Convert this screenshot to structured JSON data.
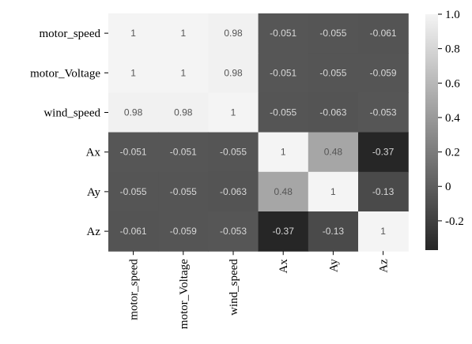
{
  "chart_data": {
    "type": "heatmap",
    "title": "",
    "row_labels": [
      "motor_speed",
      "motor_Voltage",
      "wind_speed",
      "Ax",
      "Ay",
      "Az"
    ],
    "col_labels": [
      "motor_speed",
      "motor_Voltage",
      "wind_speed",
      "Ax",
      "Ay",
      "Az"
    ],
    "values": [
      [
        1,
        1,
        0.98,
        -0.051,
        -0.055,
        -0.061
      ],
      [
        1,
        1,
        0.98,
        -0.051,
        -0.055,
        -0.059
      ],
      [
        0.98,
        0.98,
        1,
        -0.055,
        -0.063,
        -0.053
      ],
      [
        -0.051,
        -0.051,
        -0.055,
        1,
        0.48,
        -0.37
      ],
      [
        -0.055,
        -0.055,
        -0.063,
        0.48,
        1,
        -0.13
      ],
      [
        -0.061,
        -0.059,
        -0.053,
        -0.37,
        -0.13,
        1
      ]
    ],
    "annotations": [
      [
        "1",
        "1",
        "0.98",
        "-0.051",
        "-0.055",
        "-0.061"
      ],
      [
        "1",
        "1",
        "0.98",
        "-0.051",
        "-0.055",
        "-0.059"
      ],
      [
        "0.98",
        "0.98",
        "1",
        "-0.055",
        "-0.063",
        "-0.053"
      ],
      [
        "-0.051",
        "-0.051",
        "-0.055",
        "1",
        "0.48",
        "-0.37"
      ],
      [
        "-0.055",
        "-0.055",
        "-0.063",
        "0.48",
        "1",
        "-0.13"
      ],
      [
        "-0.061",
        "-0.059",
        "-0.053",
        "-0.37",
        "-0.13",
        "1"
      ]
    ],
    "colormap": "grayscale",
    "vmin": -0.37,
    "vmax": 1.0,
    "colorbar": {
      "ticks": [
        1.0,
        0.8,
        0.6,
        0.4,
        0.2,
        0,
        -0.2
      ],
      "tick_labels": [
        "1.0",
        "0.8",
        "0.6",
        "0.4",
        "0.2",
        "0",
        "-0.2"
      ]
    }
  }
}
